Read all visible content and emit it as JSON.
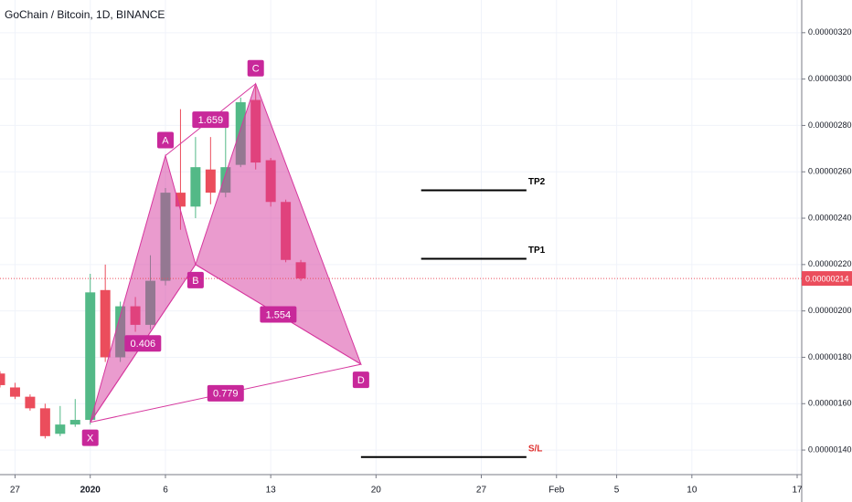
{
  "chart_data": {
    "type": "candlestick",
    "title": "GoChain / Bitcoin, 1D, BINANCE",
    "x": [
      "2019-12-26",
      "2019-12-27",
      "2019-12-28",
      "2019-12-29",
      "2019-12-30",
      "2019-12-31",
      "2020-01-01",
      "2020-01-02",
      "2020-01-03",
      "2020-01-04",
      "2020-01-05",
      "2020-01-06",
      "2020-01-07",
      "2020-01-08",
      "2020-01-09",
      "2020-01-10",
      "2020-01-11",
      "2020-01-12",
      "2020-01-13",
      "2020-01-14",
      "2020-01-15"
    ],
    "open": [
      1.73e-06,
      1.67e-06,
      1.63e-06,
      1.58e-06,
      1.47e-06,
      1.51e-06,
      1.53e-06,
      2.09e-06,
      1.8e-06,
      2.02e-06,
      1.94e-06,
      2.13e-06,
      2.51e-06,
      2.45e-06,
      2.61e-06,
      2.51e-06,
      2.63e-06,
      2.91e-06,
      2.65e-06,
      2.47e-06,
      2.21e-06
    ],
    "high": [
      1.74e-06,
      1.69e-06,
      1.64e-06,
      1.6e-06,
      1.59e-06,
      1.62e-06,
      2.16e-06,
      2.2e-06,
      2.04e-06,
      2.06e-06,
      2.24e-06,
      2.53e-06,
      2.87e-06,
      2.75e-06,
      2.75e-06,
      2.79e-06,
      2.92e-06,
      2.97e-06,
      2.66e-06,
      2.48e-06,
      2.22e-06
    ],
    "low": [
      1.67e-06,
      1.62e-06,
      1.57e-06,
      1.45e-06,
      1.46e-06,
      1.5e-06,
      1.51e-06,
      1.78e-06,
      1.78e-06,
      1.91e-06,
      1.92e-06,
      2.11e-06,
      2.35e-06,
      2.4e-06,
      2.46e-06,
      2.49e-06,
      2.62e-06,
      2.61e-06,
      2.45e-06,
      2.21e-06,
      2.13e-06
    ],
    "close": [
      1.68e-06,
      1.63e-06,
      1.58e-06,
      1.46e-06,
      1.51e-06,
      1.53e-06,
      2.08e-06,
      1.8e-06,
      2.02e-06,
      1.94e-06,
      2.13e-06,
      2.51e-06,
      2.45e-06,
      2.62e-06,
      2.51e-06,
      2.62e-06,
      2.9e-06,
      2.64e-06,
      2.47e-06,
      2.22e-06,
      2.14e-06
    ],
    "up_color": "#53b987",
    "down_color": "#eb4d5c",
    "xlim": [
      "2019-12-26",
      "2020-02-17"
    ],
    "xticks": [
      {
        "value": "2019-12-27",
        "label": "27"
      },
      {
        "value": "2020-01-01",
        "label": "2020"
      },
      {
        "value": "2020-01-06",
        "label": "6"
      },
      {
        "value": "2020-01-13",
        "label": "13"
      },
      {
        "value": "2020-01-20",
        "label": "20"
      },
      {
        "value": "2020-01-27",
        "label": "27"
      },
      {
        "value": "2020-02-01",
        "label": "Feb"
      },
      {
        "value": "2020-02-05",
        "label": "5"
      },
      {
        "value": "2020-02-10",
        "label": "10"
      },
      {
        "value": "2020-02-17",
        "label": "17"
      }
    ],
    "ylim": [
      1.294e-06,
      3.341e-06
    ],
    "yticks": [
      {
        "value": 1.4e-06,
        "label": "0.00000140"
      },
      {
        "value": 1.6e-06,
        "label": "0.00000160"
      },
      {
        "value": 1.8e-06,
        "label": "0.00000180"
      },
      {
        "value": 2e-06,
        "label": "0.00000200"
      },
      {
        "value": 2.2e-06,
        "label": "0.00000220"
      },
      {
        "value": 2.4e-06,
        "label": "0.00000240"
      },
      {
        "value": 2.6e-06,
        "label": "0.00000260"
      },
      {
        "value": 2.8e-06,
        "label": "0.00000280"
      },
      {
        "value": 3e-06,
        "label": "0.00000300"
      },
      {
        "value": 3.2e-06,
        "label": "0.00000320"
      }
    ],
    "grid": true,
    "last_price": {
      "value": 2.14e-06,
      "label": "0.00000214"
    },
    "pattern": {
      "points": [
        {
          "label": "X",
          "x": "2020-01-01",
          "y": 1.52e-06
        },
        {
          "label": "A",
          "x": "2020-01-06",
          "y": 2.67e-06
        },
        {
          "label": "B",
          "x": "2020-01-08",
          "y": 2.2e-06
        },
        {
          "label": "C",
          "x": "2020-01-12",
          "y": 2.98e-06
        },
        {
          "label": "D",
          "x": "2020-01-19",
          "y": 1.77e-06
        }
      ],
      "ratios": [
        "0.406",
        "1.659",
        "1.554",
        "0.779"
      ],
      "color": "#d6379e"
    },
    "levels": [
      {
        "label": "TP2",
        "value": 2.52e-06,
        "x": [
          "2020-01-23",
          "2020-01-30"
        ],
        "color": "#000000"
      },
      {
        "label": "TP1",
        "value": 2.225e-06,
        "x": [
          "2020-01-23",
          "2020-01-30"
        ],
        "color": "#000000"
      },
      {
        "label": "S/L",
        "value": 1.37e-06,
        "x": [
          "2020-01-19",
          "2020-01-30"
        ],
        "color": "#e0312f"
      }
    ]
  }
}
